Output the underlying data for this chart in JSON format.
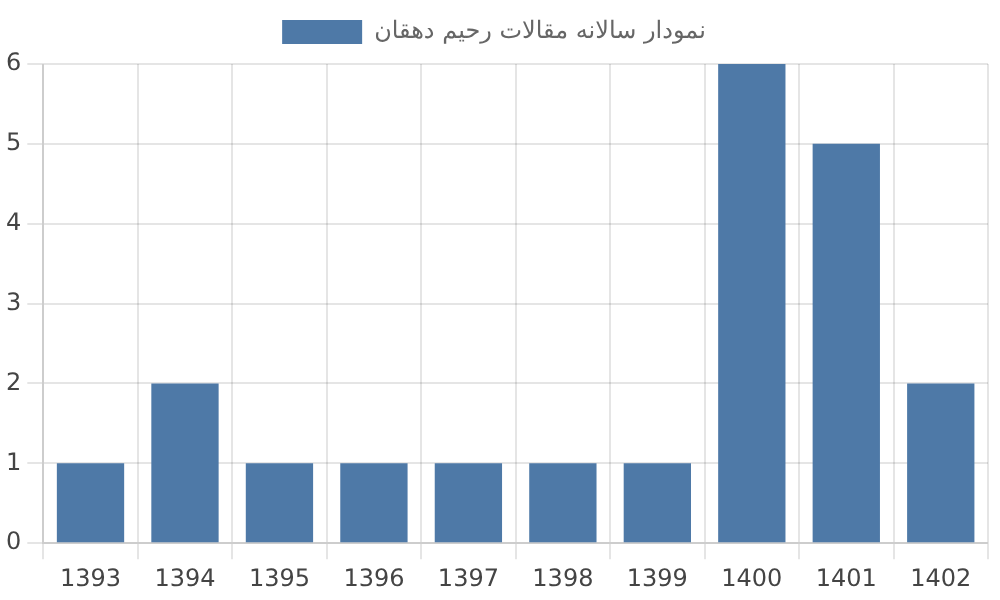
{
  "chart_data": {
    "type": "bar",
    "categories": [
      "1393",
      "1394",
      "1395",
      "1396",
      "1397",
      "1398",
      "1399",
      "1400",
      "1401",
      "1402"
    ],
    "series": [
      {
        "name": "نمودار سالانه مقالات رحیم دهقان",
        "color": "#4e79a7",
        "values": [
          1,
          2,
          1,
          1,
          1,
          1,
          1,
          6,
          5,
          2
        ]
      }
    ],
    "ylim": [
      0,
      6
    ],
    "yticks": [
      0,
      1,
      2,
      3,
      4,
      5,
      6
    ],
    "grid": true,
    "legend": "top"
  }
}
